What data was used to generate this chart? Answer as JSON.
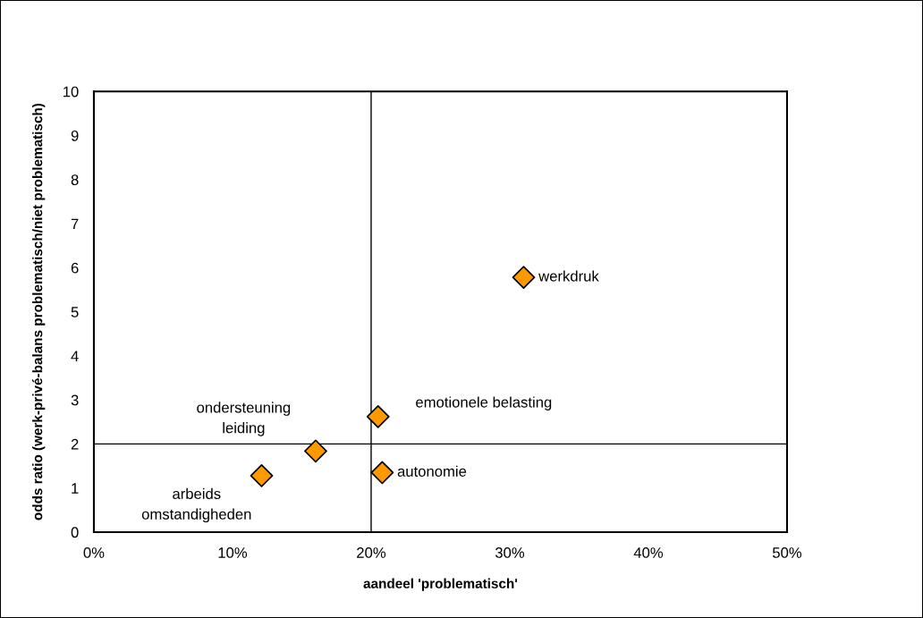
{
  "chart_data": {
    "type": "scatter",
    "xlabel": "aandeel 'problematisch'",
    "ylabel": "odds ratio (werk-privé-balans problematisch/niet problematisch)",
    "x": [
      12.1,
      16.0,
      20.5,
      20.8,
      31.0
    ],
    "values": [
      1.28,
      1.84,
      2.62,
      1.35,
      5.78
    ],
    "color": "#ff9900",
    "marker": "diamond",
    "xlim": [
      0,
      50
    ],
    "xticks": [
      {
        "value": 0,
        "label": "0%"
      },
      {
        "value": 10,
        "label": "10%"
      },
      {
        "value": 20,
        "label": "20%"
      },
      {
        "value": 30,
        "label": "30%"
      },
      {
        "value": 40,
        "label": "40%"
      },
      {
        "value": 50,
        "label": "50%"
      }
    ],
    "ylim": [
      0,
      10
    ],
    "yticks": [
      0,
      1,
      2,
      3,
      4,
      5,
      6,
      7,
      8,
      9,
      10
    ],
    "grid": false,
    "ref_lines": [
      {
        "axis": "x",
        "value": 20,
        "color": "#000000"
      },
      {
        "axis": "y",
        "value": 2,
        "color": "#000000"
      }
    ],
    "annotations": [
      {
        "text": "arbeids\nomstandigheden",
        "x": 12.1,
        "y": 1.28
      },
      {
        "text": "ondersteuning\nleiding",
        "x": 16.0,
        "y": 1.84
      },
      {
        "text": "emotionele belasting",
        "x": 20.5,
        "y": 2.62
      },
      {
        "text": "autonomie",
        "x": 20.8,
        "y": 1.35
      },
      {
        "text": "werkdruk",
        "x": 31.0,
        "y": 5.78
      }
    ]
  }
}
